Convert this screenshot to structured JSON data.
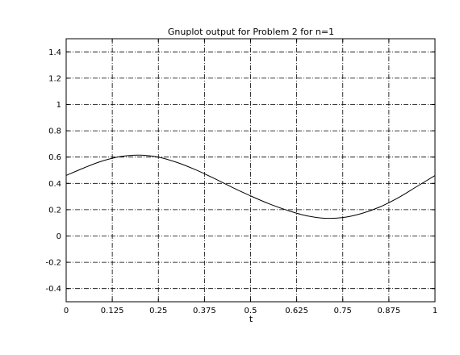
{
  "chart_data": {
    "type": "line",
    "title": "Gnuplot output for Problem 2 for n=1",
    "xlabel": "t",
    "ylabel": "",
    "xlim": [
      0,
      1
    ],
    "ylim": [
      -0.5,
      1.5
    ],
    "grid": true,
    "x_ticks": [
      {
        "value": 0,
        "label": "0"
      },
      {
        "value": 0.125,
        "label": "0.125"
      },
      {
        "value": 0.25,
        "label": "0.25"
      },
      {
        "value": 0.375,
        "label": "0.375"
      },
      {
        "value": 0.5,
        "label": "0.5"
      },
      {
        "value": 0.625,
        "label": "0.625"
      },
      {
        "value": 0.75,
        "label": "0.75"
      },
      {
        "value": 0.875,
        "label": "0.875"
      },
      {
        "value": 1,
        "label": "1"
      }
    ],
    "y_ticks": [
      {
        "value": 1.4,
        "label": "1.4"
      },
      {
        "value": 1.2,
        "label": "1.2"
      },
      {
        "value": 1,
        "label": "1"
      },
      {
        "value": 0.8,
        "label": "0.8"
      },
      {
        "value": 0.6,
        "label": "0.6"
      },
      {
        "value": 0.4,
        "label": "0.4"
      },
      {
        "value": 0.2,
        "label": "0.2"
      },
      {
        "value": 0,
        "label": "0"
      },
      {
        "value": -0.2,
        "label": "-0.2"
      },
      {
        "value": -0.4,
        "label": "-0.4"
      }
    ],
    "series": [
      {
        "x": [
          0,
          0.05,
          0.1,
          0.15,
          0.2,
          0.25,
          0.3,
          0.35,
          0.4,
          0.45,
          0.5,
          0.55,
          0.6,
          0.65,
          0.7,
          0.75,
          0.8,
          0.85,
          0.9,
          0.95,
          1.0
        ],
        "y": [
          0.46,
          0.52,
          0.572,
          0.605,
          0.615,
          0.6,
          0.56,
          0.505,
          0.44,
          0.37,
          0.305,
          0.245,
          0.195,
          0.155,
          0.135,
          0.14,
          0.17,
          0.22,
          0.29,
          0.375,
          0.46
        ]
      }
    ]
  }
}
